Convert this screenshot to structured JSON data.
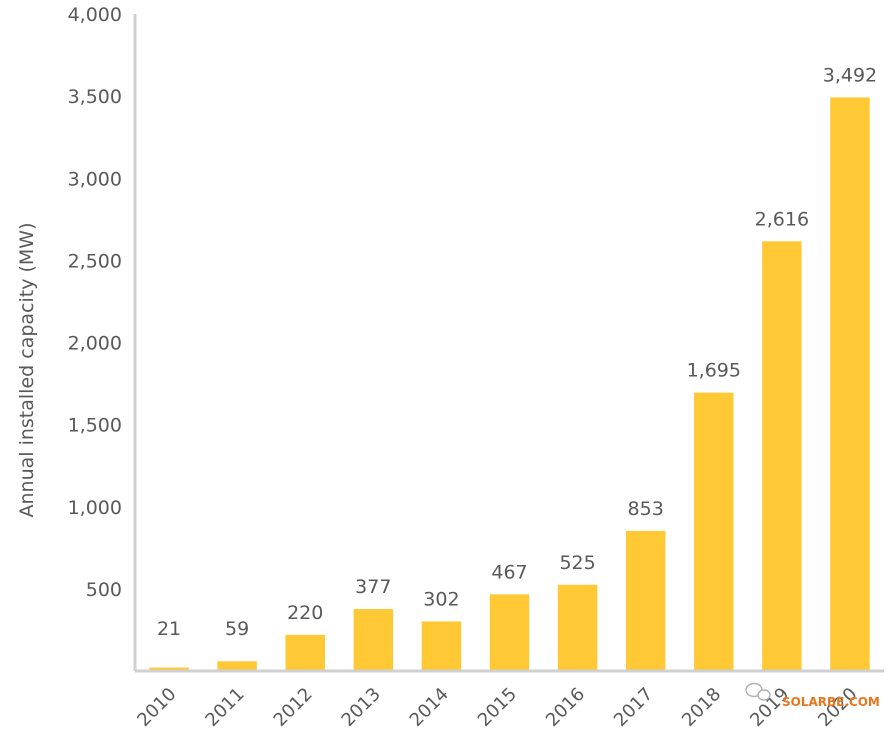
{
  "chart_data": {
    "type": "bar",
    "title": "",
    "xlabel": "",
    "ylabel": "Annual installed capacity (MW)",
    "categories": [
      "2010",
      "2011",
      "2012",
      "2013",
      "2014",
      "2015",
      "2016",
      "2017",
      "2018",
      "2019",
      "2020"
    ],
    "values": [
      21,
      59,
      220,
      377,
      302,
      467,
      525,
      853,
      1695,
      2616,
      3492
    ],
    "value_labels": [
      "21",
      "59",
      "220",
      "377",
      "302",
      "467",
      "525",
      "853",
      "1,695",
      "2,616",
      "3,492"
    ],
    "ylim": [
      0,
      4000
    ],
    "yticks": [
      500,
      1000,
      1500,
      2000,
      2500,
      3000,
      3500,
      4000
    ],
    "ytick_labels": [
      "500",
      "1,000",
      "1,500",
      "2,000",
      "2,500",
      "3,000",
      "3,500",
      "4,000"
    ],
    "grid": false,
    "bar_color": "#FFC936",
    "axis_color": "#D0D0D0",
    "text_color": "#595959"
  },
  "watermark": {
    "text": "SOLARBE.COM",
    "color": "#E8761E",
    "icon": "wechat-icon"
  }
}
